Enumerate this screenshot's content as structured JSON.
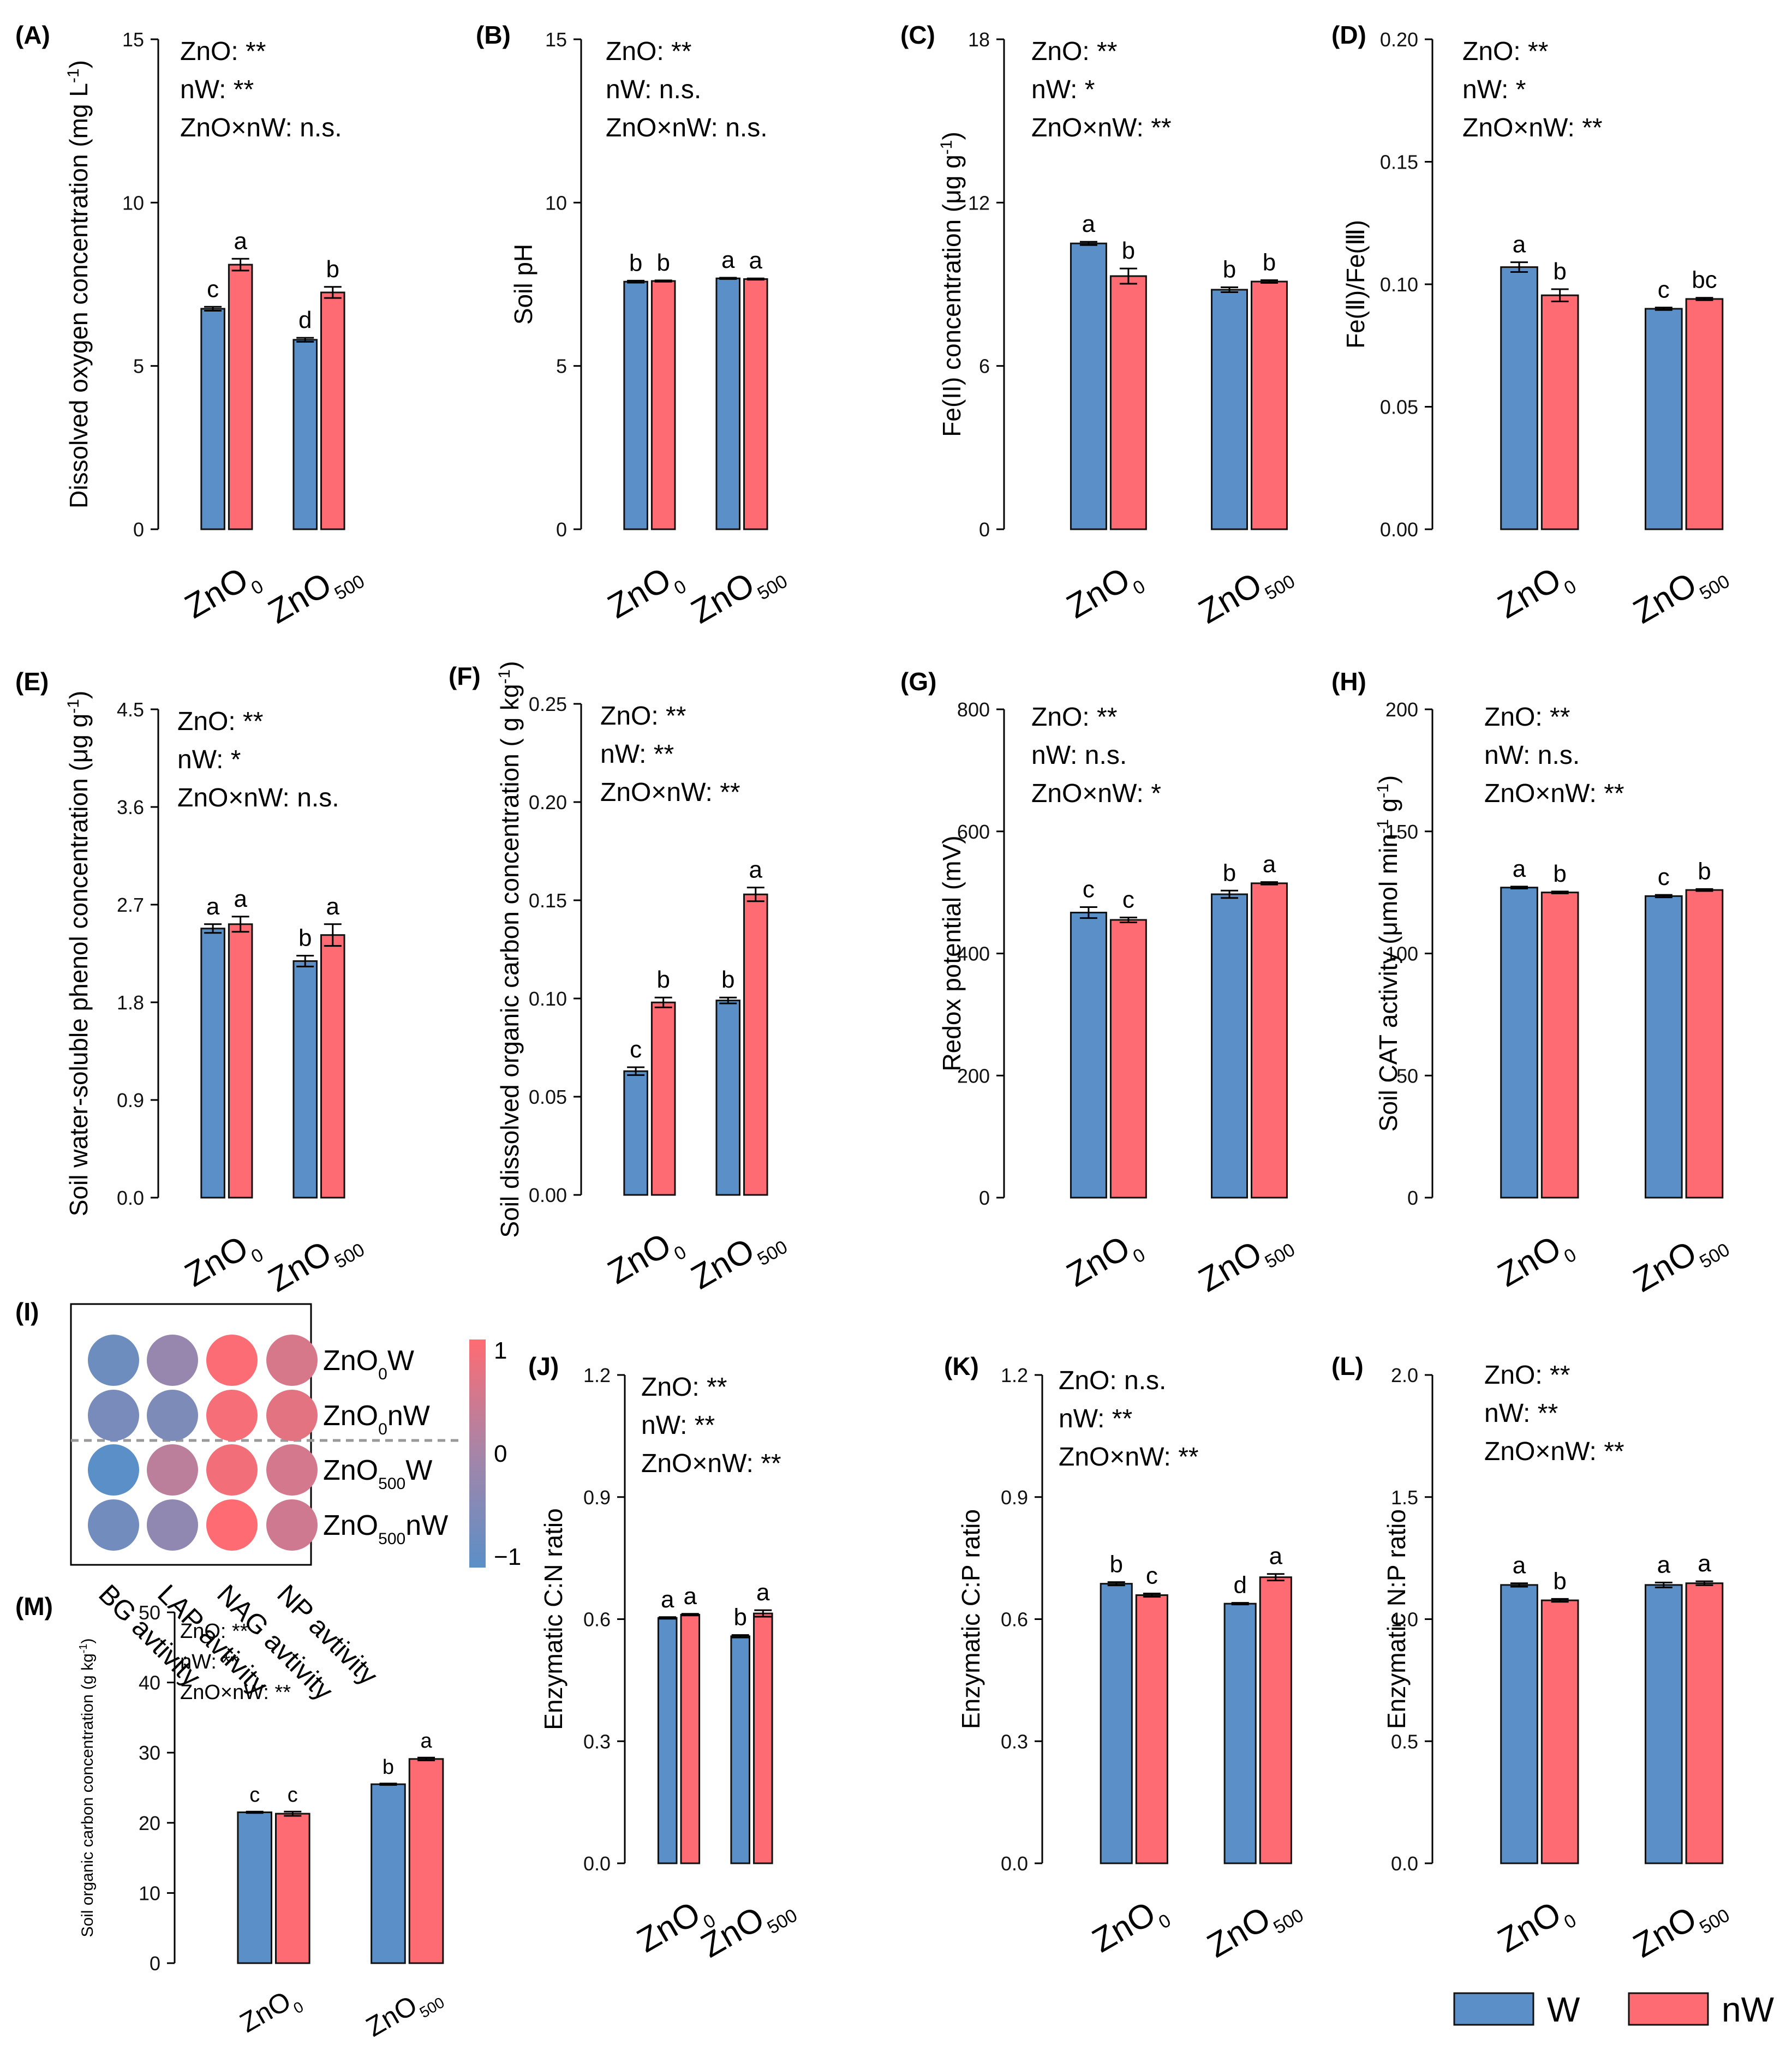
{
  "colors": {
    "W": "#5b8fc7",
    "nW": "#ff6b72"
  },
  "legend": {
    "w_label": "W",
    "nw_label": "nW"
  },
  "category_labels": {
    "c0_main": "ZnO",
    "c0_sub": "0",
    "c1_main": "ZnO",
    "c1_sub": "500"
  },
  "chart_data": [
    {
      "id": "A",
      "type": "bar",
      "panel_label": "(A)",
      "ylabel": "Dissolved oxygen concentration (mg L",
      "ylabel_sup": "-1",
      "ylabel_end": ")",
      "ylim": [
        0,
        15
      ],
      "yticks": [
        "0",
        "5",
        "10",
        "15"
      ],
      "stats": [
        "ZnO: **",
        "nW: **",
        "ZnO×nW: n.s."
      ],
      "categories": [
        "ZnO0",
        "ZnO500"
      ],
      "series": [
        {
          "name": "W",
          "values": [
            6.75,
            5.8
          ],
          "errors": [
            0.06,
            0.06
          ],
          "letters": [
            "c",
            "d"
          ]
        },
        {
          "name": "nW",
          "values": [
            8.1,
            7.25
          ],
          "errors": [
            0.18,
            0.17
          ],
          "letters": [
            "a",
            "b"
          ]
        }
      ]
    },
    {
      "id": "B",
      "type": "bar",
      "panel_label": "(B)",
      "ylabel": "Soil pH",
      "ylabel_sup": "",
      "ylabel_end": "",
      "ylim": [
        0,
        15
      ],
      "yticks": [
        "0",
        "5",
        "10",
        "15"
      ],
      "stats": [
        "ZnO: **",
        "nW:  n.s.",
        "ZnO×nW: n.s."
      ],
      "categories": [
        "ZnO0",
        "ZnO500"
      ],
      "series": [
        {
          "name": "W",
          "values": [
            7.58,
            7.68
          ],
          "errors": [
            0.03,
            0.02
          ],
          "letters": [
            "b",
            "a"
          ]
        },
        {
          "name": "nW",
          "values": [
            7.6,
            7.66
          ],
          "errors": [
            0.02,
            0.02
          ],
          "letters": [
            "b",
            "a"
          ]
        }
      ]
    },
    {
      "id": "C",
      "type": "bar",
      "panel_label": "(C)",
      "ylabel": "Fe(II) concentration (μg g",
      "ylabel_sup": "-1",
      "ylabel_end": ")",
      "ylim": [
        0,
        18
      ],
      "yticks": [
        "0",
        "6",
        "12",
        "18"
      ],
      "stats": [
        "ZnO: **",
        "nW: *",
        "ZnO×nW: **"
      ],
      "categories": [
        "ZnO0",
        "ZnO500"
      ],
      "series": [
        {
          "name": "W",
          "values": [
            10.5,
            8.8
          ],
          "errors": [
            0.06,
            0.09
          ],
          "letters": [
            "a",
            "b"
          ]
        },
        {
          "name": "nW",
          "values": [
            9.3,
            9.1
          ],
          "errors": [
            0.28,
            0.05
          ],
          "letters": [
            "b",
            "b"
          ]
        }
      ]
    },
    {
      "id": "D",
      "type": "bar",
      "panel_label": "(D)",
      "ylabel": "Fe(Ⅱ)/Fe(Ⅲ)",
      "ylabel_sup": "",
      "ylabel_end": "",
      "ylim": [
        0,
        0.2
      ],
      "yticks": [
        "0.00",
        "0.05",
        "0.10",
        "0.15",
        "0.20"
      ],
      "stats": [
        "ZnO: **",
        "nW: *",
        "ZnO×nW: **"
      ],
      "categories": [
        "ZnO0",
        "ZnO500"
      ],
      "series": [
        {
          "name": "W",
          "values": [
            0.107,
            0.09
          ],
          "errors": [
            0.002,
            0.0005
          ],
          "letters": [
            "a",
            "c"
          ]
        },
        {
          "name": "nW",
          "values": [
            0.0955,
            0.094
          ],
          "errors": [
            0.0025,
            0.0005
          ],
          "letters": [
            "b",
            "bc"
          ]
        }
      ]
    },
    {
      "id": "E",
      "type": "bar",
      "panel_label": "(E)",
      "ylabel": "Soil water-soluble phenol concentration (μg g",
      "ylabel_sup": "-1",
      "ylabel_end": ")",
      "ylim": [
        0,
        4.5
      ],
      "yticks": [
        "0.0",
        "0.9",
        "1.8",
        "2.7",
        "3.6",
        "4.5"
      ],
      "stats": [
        "ZnO: **",
        "nW: *",
        "ZnO×nW: n.s."
      ],
      "categories": [
        "ZnO0",
        "ZnO500"
      ],
      "series": [
        {
          "name": "W",
          "values": [
            2.48,
            2.18
          ],
          "errors": [
            0.04,
            0.05
          ],
          "letters": [
            "a",
            "b"
          ]
        },
        {
          "name": "nW",
          "values": [
            2.52,
            2.42
          ],
          "errors": [
            0.07,
            0.1
          ],
          "letters": [
            "a",
            "a"
          ]
        }
      ]
    },
    {
      "id": "F",
      "type": "bar",
      "panel_label": "(F)",
      "ylabel": "Soil dissolved organic carbon concentration ( g kg",
      "ylabel_sup": "-1",
      "ylabel_end": ")",
      "ylim": [
        0,
        0.25
      ],
      "yticks": [
        "0.00",
        "0.05",
        "0.10",
        "0.15",
        "0.20",
        "0.25"
      ],
      "stats": [
        "ZnO: **",
        "nW: **",
        "ZnO×nW: **"
      ],
      "categories": [
        "ZnO0",
        "ZnO500"
      ],
      "series": [
        {
          "name": "W",
          "values": [
            0.063,
            0.099
          ],
          "errors": [
            0.002,
            0.0015
          ],
          "letters": [
            "c",
            "b"
          ]
        },
        {
          "name": "nW",
          "values": [
            0.098,
            0.153
          ],
          "errors": [
            0.0025,
            0.0035
          ],
          "letters": [
            "b",
            "a"
          ]
        }
      ]
    },
    {
      "id": "G",
      "type": "bar",
      "panel_label": "(G)",
      "ylabel": "Redox potential (mV)",
      "ylabel_sup": "",
      "ylabel_end": "",
      "ylim": [
        0,
        800
      ],
      "yticks": [
        "0",
        "200",
        "400",
        "600",
        "800"
      ],
      "stats": [
        "ZnO: **",
        "nW: n.s.",
        "ZnO×nW: *"
      ],
      "categories": [
        "ZnO0",
        "ZnO500"
      ],
      "series": [
        {
          "name": "W",
          "values": [
            467,
            497
          ],
          "errors": [
            9,
            6
          ],
          "letters": [
            "c",
            "b"
          ]
        },
        {
          "name": "nW",
          "values": [
            455,
            515
          ],
          "errors": [
            4,
            2
          ],
          "letters": [
            "c",
            "a"
          ]
        }
      ]
    },
    {
      "id": "H",
      "type": "bar",
      "panel_label": "(H)",
      "ylabel": "Soil CAT activity (μmol min",
      "ylabel_sup": "-1",
      "ylabel_mid": " g",
      "ylabel_sup2": "-1",
      "ylabel_end": ")",
      "ylim": [
        0,
        200
      ],
      "yticks": [
        "0",
        "50",
        "100",
        "150",
        "200"
      ],
      "stats": [
        "ZnO: **",
        "nW: n.s.",
        "ZnO×nW: **"
      ],
      "categories": [
        "ZnO0",
        "ZnO500"
      ],
      "series": [
        {
          "name": "W",
          "values": [
            127,
            123.5
          ],
          "errors": [
            0.4,
            0.5
          ],
          "letters": [
            "a",
            "c"
          ]
        },
        {
          "name": "nW",
          "values": [
            125,
            126
          ],
          "errors": [
            0.4,
            0.4
          ],
          "letters": [
            "b",
            "b"
          ]
        }
      ]
    },
    {
      "id": "J",
      "type": "bar",
      "panel_label": "(J)",
      "ylabel": "Enzymatic C:N ratio",
      "ylabel_sup": "",
      "ylabel_end": "",
      "ylim": [
        0,
        1.2
      ],
      "yticks": [
        "0.0",
        "0.3",
        "0.6",
        "0.9",
        "1.2"
      ],
      "stats": [
        "ZnO: **",
        "nW: **",
        "ZnO×nW: **"
      ],
      "categories": [
        "ZnO0",
        "ZnO500"
      ],
      "series": [
        {
          "name": "W",
          "values": [
            0.603,
            0.558
          ],
          "errors": [
            0.002,
            0.003
          ],
          "letters": [
            "a",
            "b"
          ]
        },
        {
          "name": "nW",
          "values": [
            0.611,
            0.614
          ],
          "errors": [
            0.002,
            0.008
          ],
          "letters": [
            "a",
            "a"
          ]
        }
      ]
    },
    {
      "id": "K",
      "type": "bar",
      "panel_label": "(K)",
      "ylabel": "Enzymatic C:P ratio",
      "ylabel_sup": "",
      "ylabel_end": "",
      "ylim": [
        0,
        1.2
      ],
      "yticks": [
        "0.0",
        "0.3",
        "0.6",
        "0.9",
        "1.2"
      ],
      "stats": [
        "ZnO: n.s.",
        "nW: **",
        "ZnO×nW: **"
      ],
      "categories": [
        "ZnO0",
        "ZnO500"
      ],
      "series": [
        {
          "name": "W",
          "values": [
            0.687,
            0.638
          ],
          "errors": [
            0.004,
            0.002
          ],
          "letters": [
            "b",
            "d"
          ]
        },
        {
          "name": "nW",
          "values": [
            0.659,
            0.703
          ],
          "errors": [
            0.004,
            0.008
          ],
          "letters": [
            "c",
            "a"
          ]
        }
      ]
    },
    {
      "id": "L",
      "type": "bar",
      "panel_label": "(L)",
      "ylabel": "Enzymatic N:P ratio",
      "ylabel_sup": "",
      "ylabel_end": "",
      "ylim": [
        0,
        2.0
      ],
      "yticks": [
        "0.0",
        "0.5",
        "1.0",
        "1.5",
        "2.0"
      ],
      "stats": [
        "ZnO: **",
        "nW: **",
        "ZnO×nW: **"
      ],
      "categories": [
        "ZnO0",
        "ZnO500"
      ],
      "series": [
        {
          "name": "W",
          "values": [
            1.14,
            1.14
          ],
          "errors": [
            0.007,
            0.01
          ],
          "letters": [
            "a",
            "a"
          ]
        },
        {
          "name": "nW",
          "values": [
            1.077,
            1.147
          ],
          "errors": [
            0.006,
            0.008
          ],
          "letters": [
            "b",
            "a"
          ]
        }
      ]
    },
    {
      "id": "M",
      "type": "bar",
      "panel_label": "(M)",
      "ylabel": "Soil organic carbon concentration (g kg",
      "ylabel_sup": "-1",
      "ylabel_end": ")",
      "ylim": [
        0,
        50
      ],
      "yticks": [
        "0",
        "10",
        "20",
        "30",
        "40",
        "50"
      ],
      "stats": [
        "ZnO: **",
        "nW: **",
        "ZnO×nW: **"
      ],
      "categories": [
        "ZnO0",
        "ZnO500"
      ],
      "series": [
        {
          "name": "W",
          "values": [
            21.5,
            25.5
          ],
          "errors": [
            0.1,
            0.1
          ],
          "letters": [
            "c",
            "b"
          ]
        },
        {
          "name": "nW",
          "values": [
            21.3,
            29.1
          ],
          "errors": [
            0.3,
            0.2
          ],
          "letters": [
            "c",
            "a"
          ]
        }
      ]
    },
    {
      "id": "I",
      "type": "heatmap",
      "panel_label": "(I)",
      "rows": [
        {
          "main": "ZnO",
          "sub": "0",
          "suffix": "W"
        },
        {
          "main": "ZnO",
          "sub": "0",
          "suffix": "nW"
        },
        {
          "main": "ZnO",
          "sub": "500",
          "suffix": "W"
        },
        {
          "main": "ZnO",
          "sub": "500",
          "suffix": "nW"
        }
      ],
      "columns": [
        "BG avtivity",
        "LAP avtivity",
        "NAG avtivity",
        "NP avtivity"
      ],
      "values": [
        [
          -0.75,
          -0.2,
          0.95,
          0.55
        ],
        [
          -0.6,
          -0.55,
          0.9,
          0.7
        ],
        [
          -1.0,
          0.25,
          0.85,
          0.5
        ],
        [
          -0.7,
          -0.3,
          1.0,
          0.45
        ]
      ],
      "colorbar": {
        "min": -1,
        "max": 1,
        "ticks": [
          "1",
          "0",
          "−1"
        ],
        "low_color": "#5b8fc7",
        "mid_color": "#a685a8",
        "high_color": "#ff6b72"
      }
    }
  ]
}
